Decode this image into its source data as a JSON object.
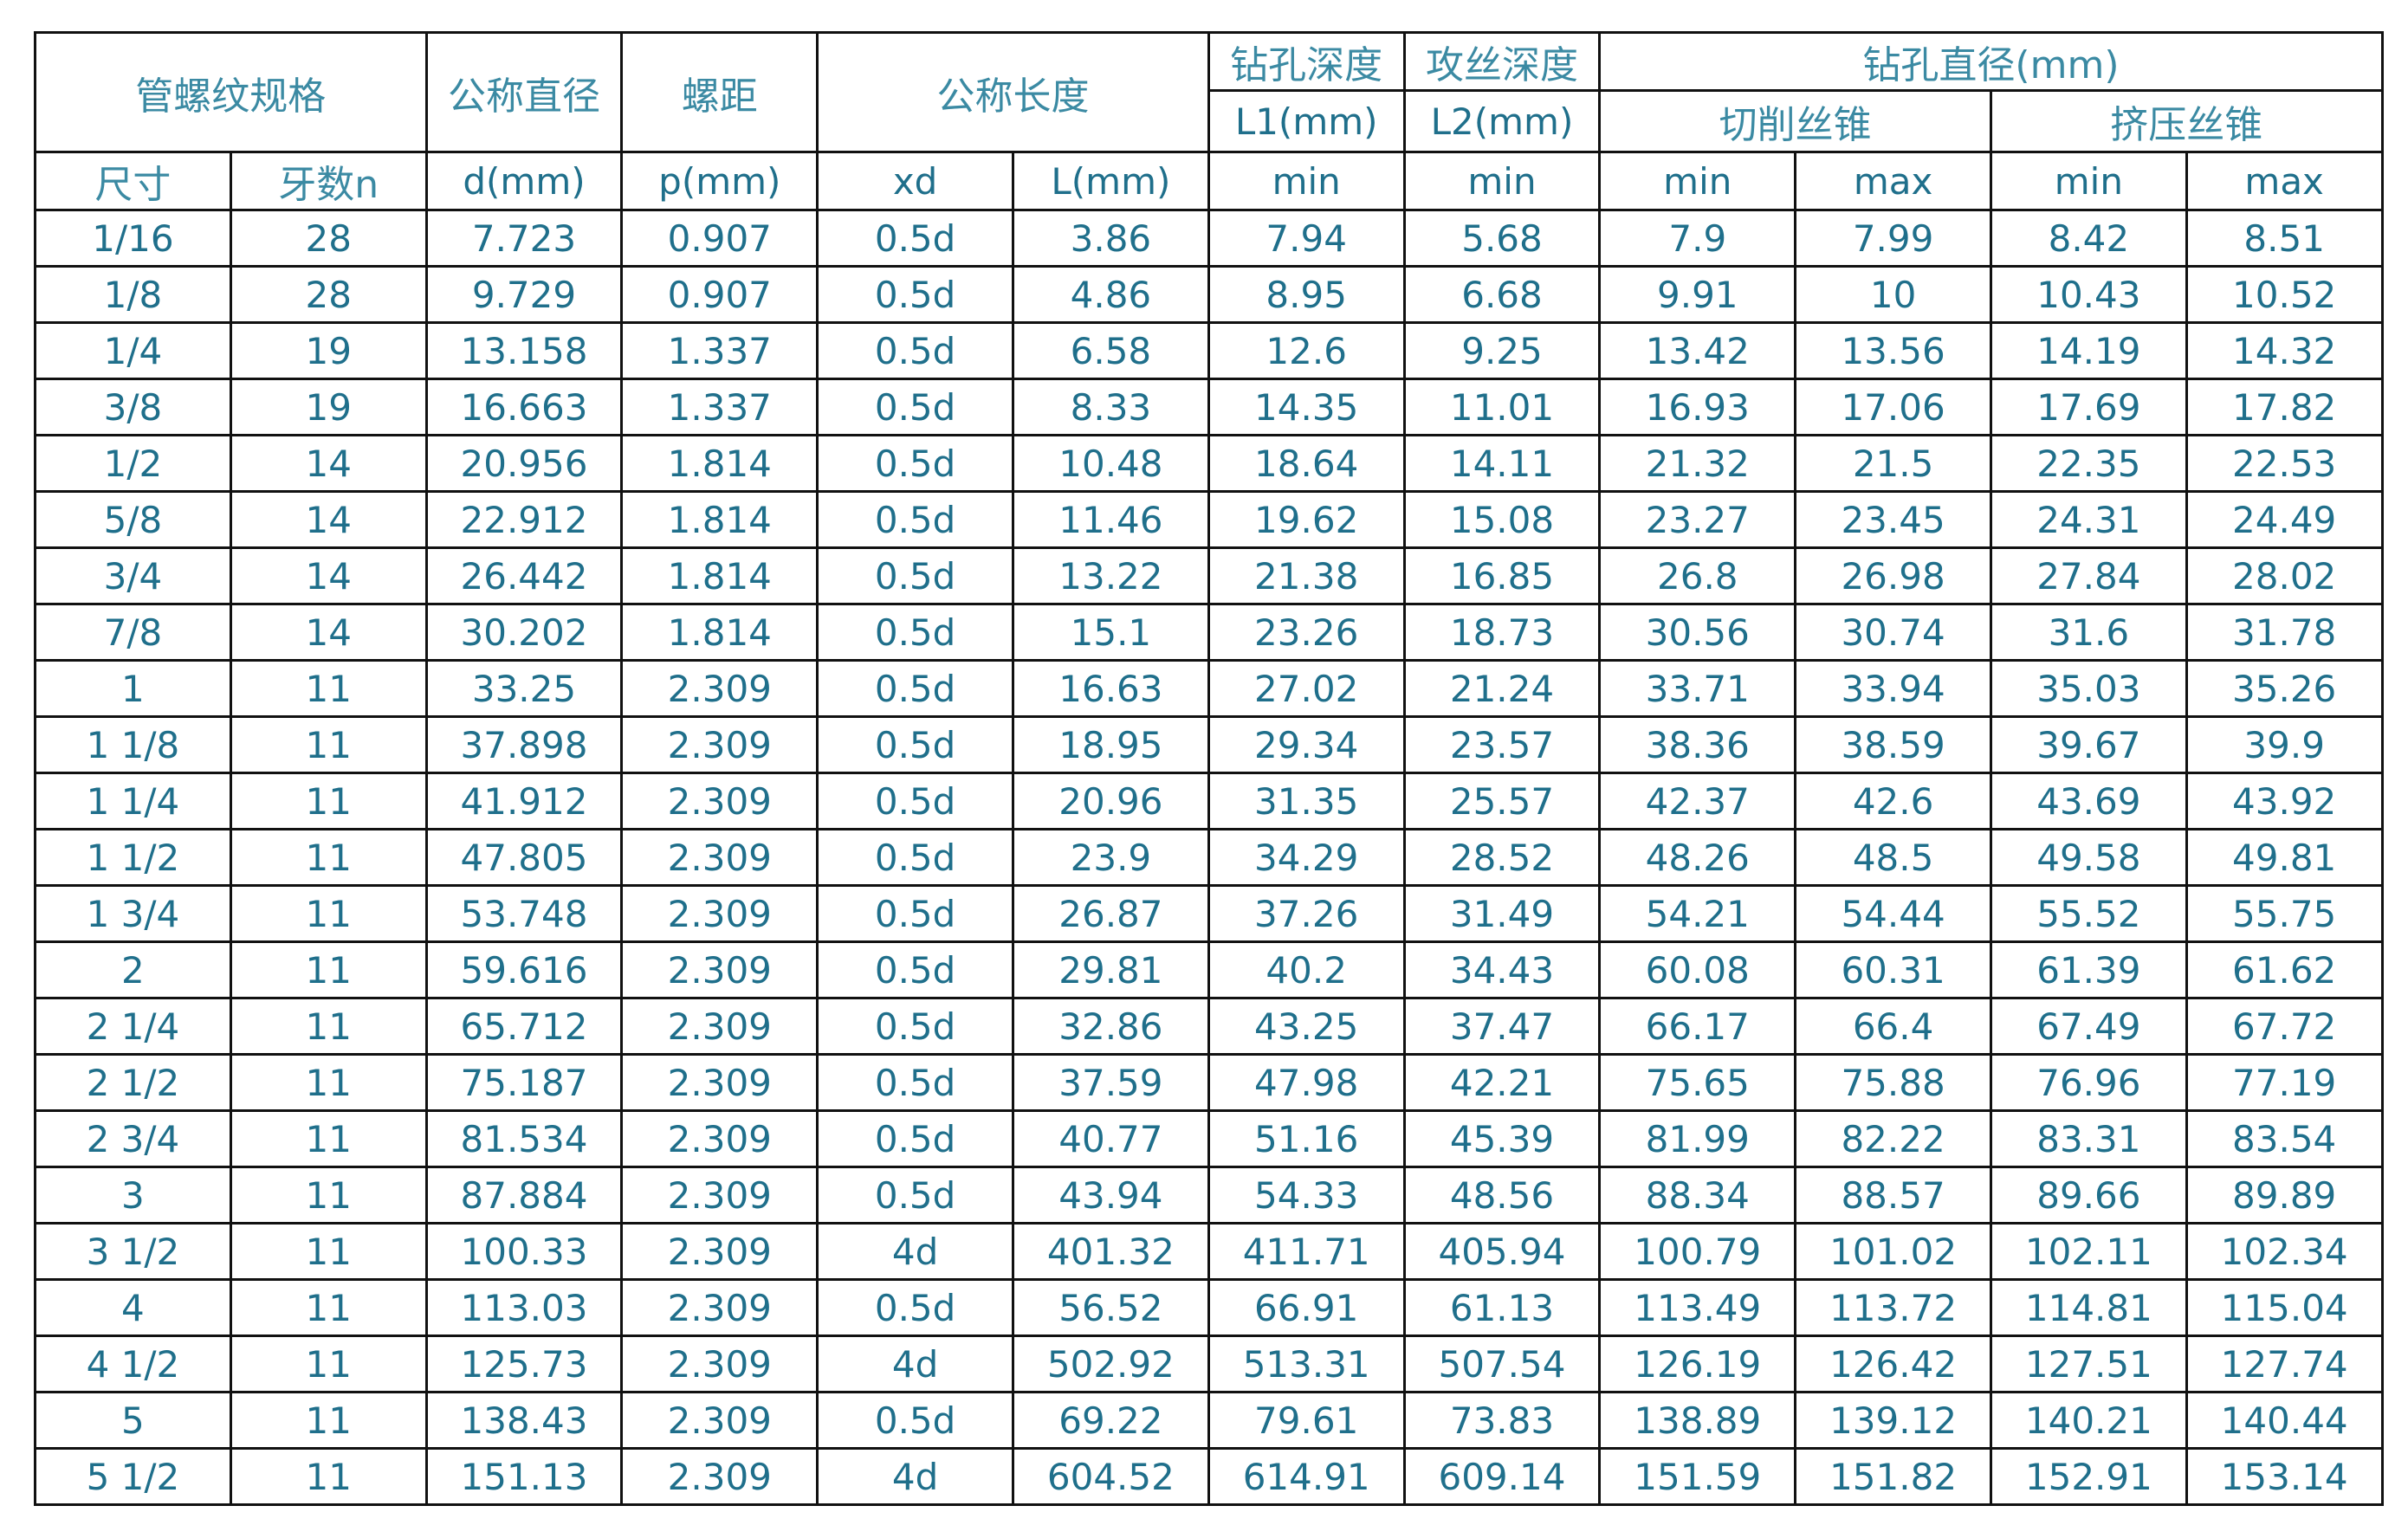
{
  "header": {
    "group": {
      "spec": "管螺纹规格",
      "diameter": "公称直径",
      "pitch": "螺距",
      "length": "公称长度",
      "drill_depth": "钻孔深度",
      "tap_depth": "攻丝深度",
      "drill_dia": "钻孔直径(mm)"
    },
    "sub": {
      "l1": "L1(mm)",
      "l2": "L2(mm)",
      "cutting": "切削丝锥",
      "forming": "挤压丝锥"
    },
    "columns": [
      "尺寸",
      "牙数n",
      "d(mm)",
      "p(mm)",
      "xd",
      "L(mm)",
      "min",
      "min",
      "min",
      "max",
      "min",
      "max"
    ]
  },
  "rows": [
    [
      "1/16",
      "28",
      "7.723",
      "0.907",
      "0.5d",
      "3.86",
      "7.94",
      "5.68",
      "7.9",
      "7.99",
      "8.42",
      "8.51"
    ],
    [
      "1/8",
      "28",
      "9.729",
      "0.907",
      "0.5d",
      "4.86",
      "8.95",
      "6.68",
      "9.91",
      "10",
      "10.43",
      "10.52"
    ],
    [
      "1/4",
      "19",
      "13.158",
      "1.337",
      "0.5d",
      "6.58",
      "12.6",
      "9.25",
      "13.42",
      "13.56",
      "14.19",
      "14.32"
    ],
    [
      "3/8",
      "19",
      "16.663",
      "1.337",
      "0.5d",
      "8.33",
      "14.35",
      "11.01",
      "16.93",
      "17.06",
      "17.69",
      "17.82"
    ],
    [
      "1/2",
      "14",
      "20.956",
      "1.814",
      "0.5d",
      "10.48",
      "18.64",
      "14.11",
      "21.32",
      "21.5",
      "22.35",
      "22.53"
    ],
    [
      "5/8",
      "14",
      "22.912",
      "1.814",
      "0.5d",
      "11.46",
      "19.62",
      "15.08",
      "23.27",
      "23.45",
      "24.31",
      "24.49"
    ],
    [
      "3/4",
      "14",
      "26.442",
      "1.814",
      "0.5d",
      "13.22",
      "21.38",
      "16.85",
      "26.8",
      "26.98",
      "27.84",
      "28.02"
    ],
    [
      "7/8",
      "14",
      "30.202",
      "1.814",
      "0.5d",
      "15.1",
      "23.26",
      "18.73",
      "30.56",
      "30.74",
      "31.6",
      "31.78"
    ],
    [
      "1",
      "11",
      "33.25",
      "2.309",
      "0.5d",
      "16.63",
      "27.02",
      "21.24",
      "33.71",
      "33.94",
      "35.03",
      "35.26"
    ],
    [
      "1 1/8",
      "11",
      "37.898",
      "2.309",
      "0.5d",
      "18.95",
      "29.34",
      "23.57",
      "38.36",
      "38.59",
      "39.67",
      "39.9"
    ],
    [
      "1 1/4",
      "11",
      "41.912",
      "2.309",
      "0.5d",
      "20.96",
      "31.35",
      "25.57",
      "42.37",
      "42.6",
      "43.69",
      "43.92"
    ],
    [
      "1 1/2",
      "11",
      "47.805",
      "2.309",
      "0.5d",
      "23.9",
      "34.29",
      "28.52",
      "48.26",
      "48.5",
      "49.58",
      "49.81"
    ],
    [
      "1 3/4",
      "11",
      "53.748",
      "2.309",
      "0.5d",
      "26.87",
      "37.26",
      "31.49",
      "54.21",
      "54.44",
      "55.52",
      "55.75"
    ],
    [
      "2",
      "11",
      "59.616",
      "2.309",
      "0.5d",
      "29.81",
      "40.2",
      "34.43",
      "60.08",
      "60.31",
      "61.39",
      "61.62"
    ],
    [
      "2 1/4",
      "11",
      "65.712",
      "2.309",
      "0.5d",
      "32.86",
      "43.25",
      "37.47",
      "66.17",
      "66.4",
      "67.49",
      "67.72"
    ],
    [
      "2 1/2",
      "11",
      "75.187",
      "2.309",
      "0.5d",
      "37.59",
      "47.98",
      "42.21",
      "75.65",
      "75.88",
      "76.96",
      "77.19"
    ],
    [
      "2 3/4",
      "11",
      "81.534",
      "2.309",
      "0.5d",
      "40.77",
      "51.16",
      "45.39",
      "81.99",
      "82.22",
      "83.31",
      "83.54"
    ],
    [
      "3",
      "11",
      "87.884",
      "2.309",
      "0.5d",
      "43.94",
      "54.33",
      "48.56",
      "88.34",
      "88.57",
      "89.66",
      "89.89"
    ],
    [
      "3 1/2",
      "11",
      "100.33",
      "2.309",
      "4d",
      "401.32",
      "411.71",
      "405.94",
      "100.79",
      "101.02",
      "102.11",
      "102.34"
    ],
    [
      "4",
      "11",
      "113.03",
      "2.309",
      "0.5d",
      "56.52",
      "66.91",
      "61.13",
      "113.49",
      "113.72",
      "114.81",
      "115.04"
    ],
    [
      "4 1/2",
      "11",
      "125.73",
      "2.309",
      "4d",
      "502.92",
      "513.31",
      "507.54",
      "126.19",
      "126.42",
      "127.51",
      "127.74"
    ],
    [
      "5",
      "11",
      "138.43",
      "2.309",
      "0.5d",
      "69.22",
      "79.61",
      "73.83",
      "138.89",
      "139.12",
      "140.21",
      "140.44"
    ],
    [
      "5 1/2",
      "11",
      "151.13",
      "2.309",
      "4d",
      "604.52",
      "614.91",
      "609.14",
      "151.59",
      "151.82",
      "152.91",
      "153.14"
    ]
  ]
}
